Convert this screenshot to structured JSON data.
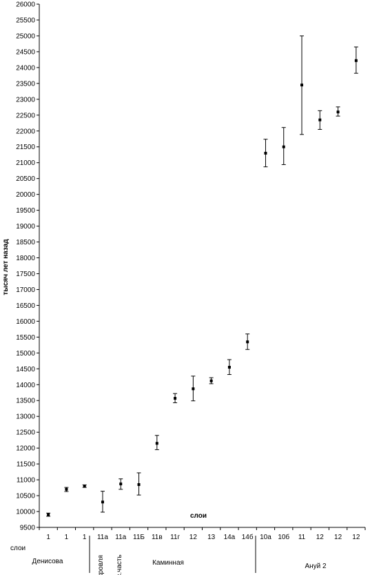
{
  "chart_data": {
    "type": "scatter",
    "title": "",
    "ylabel": "тысяч лет назад",
    "xlabel": "слои",
    "row_label": "слои",
    "ylim": [
      9500,
      26000
    ],
    "ytick_step": 500,
    "grid": false,
    "categories": [
      "1",
      "1",
      "1",
      "11а",
      "11а",
      "11Б",
      "11в",
      "11г",
      "12",
      "13",
      "14а",
      "14б",
      "10а",
      "10б",
      "11",
      "12",
      "12",
      "12"
    ],
    "groups": [
      {
        "name": "Денисова",
        "vertical": false
      },
      {
        "name": "кровля",
        "vertical": true
      },
      {
        "name": "с.часть",
        "vertical": true
      },
      {
        "name": "Каминная",
        "vertical": false
      },
      {
        "name": "Ануй 2",
        "vertical": false
      }
    ],
    "series": [
      {
        "values": [
          9900,
          10700,
          10800,
          10300,
          10870,
          10850,
          12150,
          13570,
          13870,
          14120,
          14550,
          15350,
          21300,
          21500,
          23450,
          22350,
          22600,
          24220
        ],
        "error_low": [
          9850,
          10630,
          10760,
          9980,
          10700,
          10520,
          11950,
          13430,
          13490,
          14030,
          14320,
          15110,
          20870,
          20940,
          21890,
          22050,
          22470,
          23820
        ],
        "error_high": [
          9950,
          10760,
          10840,
          10640,
          11030,
          11220,
          12400,
          13720,
          14270,
          14220,
          14790,
          15600,
          21740,
          22110,
          25000,
          22640,
          22760,
          24650
        ]
      }
    ]
  }
}
